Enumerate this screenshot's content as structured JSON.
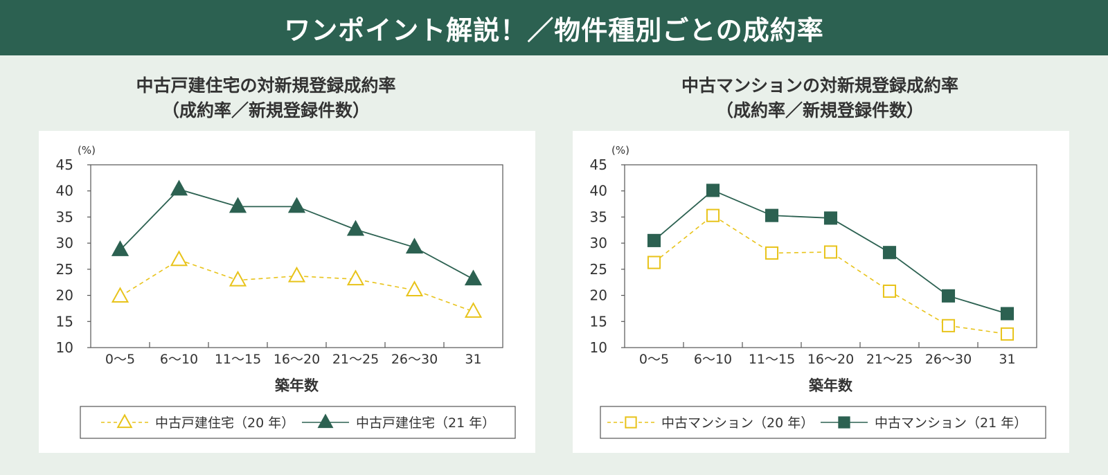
{
  "banner": {
    "title": "ワンポイント解説！／物件種別ごとの成約率"
  },
  "colors": {
    "banner_bg": "#2c6151",
    "page_bg": "#e9f0ea",
    "series_21": "#2c6151",
    "series_20": "#e8c31a"
  },
  "chart_data": [
    {
      "type": "line",
      "title_line1": "中古戸建住宅の対新規登録成約率",
      "title_line2": "（成約率／新規登録件数）",
      "unit": "(%)",
      "xlabel": "築年数",
      "categories": [
        "0～5",
        "6～10",
        "11～15",
        "16～20",
        "21～25",
        "26～30",
        "31"
      ],
      "ylim": [
        10,
        45
      ],
      "yticks": [
        10,
        15,
        20,
        25,
        30,
        35,
        40,
        45
      ],
      "marker": "triangle",
      "series": [
        {
          "name": "中古戸建住宅（20 年）",
          "style": "dashed-hollow",
          "color": "#e8c31a",
          "values": [
            19.8,
            26.8,
            22.9,
            23.7,
            23.1,
            21.0,
            16.9
          ]
        },
        {
          "name": "中古戸建住宅（21 年）",
          "style": "solid-filled",
          "color": "#2c6151",
          "values": [
            28.7,
            40.3,
            37.0,
            37.0,
            32.6,
            29.2,
            23.1
          ]
        }
      ]
    },
    {
      "type": "line",
      "title_line1": "中古マンションの対新規登録成約率",
      "title_line2": "（成約率／新規登録件数）",
      "unit": "(%)",
      "xlabel": "築年数",
      "categories": [
        "0～5",
        "6～10",
        "11～15",
        "16～20",
        "21～25",
        "26～30",
        "31"
      ],
      "ylim": [
        10,
        45
      ],
      "yticks": [
        10,
        15,
        20,
        25,
        30,
        35,
        40,
        45
      ],
      "marker": "square",
      "series": [
        {
          "name": "中古マンション（20 年）",
          "style": "dashed-hollow",
          "color": "#e8c31a",
          "values": [
            26.3,
            35.3,
            28.1,
            28.3,
            20.8,
            14.2,
            12.6
          ]
        },
        {
          "name": "中古マンション（21 年）",
          "style": "solid-filled",
          "color": "#2c6151",
          "values": [
            30.5,
            40.1,
            35.3,
            34.8,
            28.2,
            19.9,
            16.5
          ]
        }
      ]
    }
  ]
}
